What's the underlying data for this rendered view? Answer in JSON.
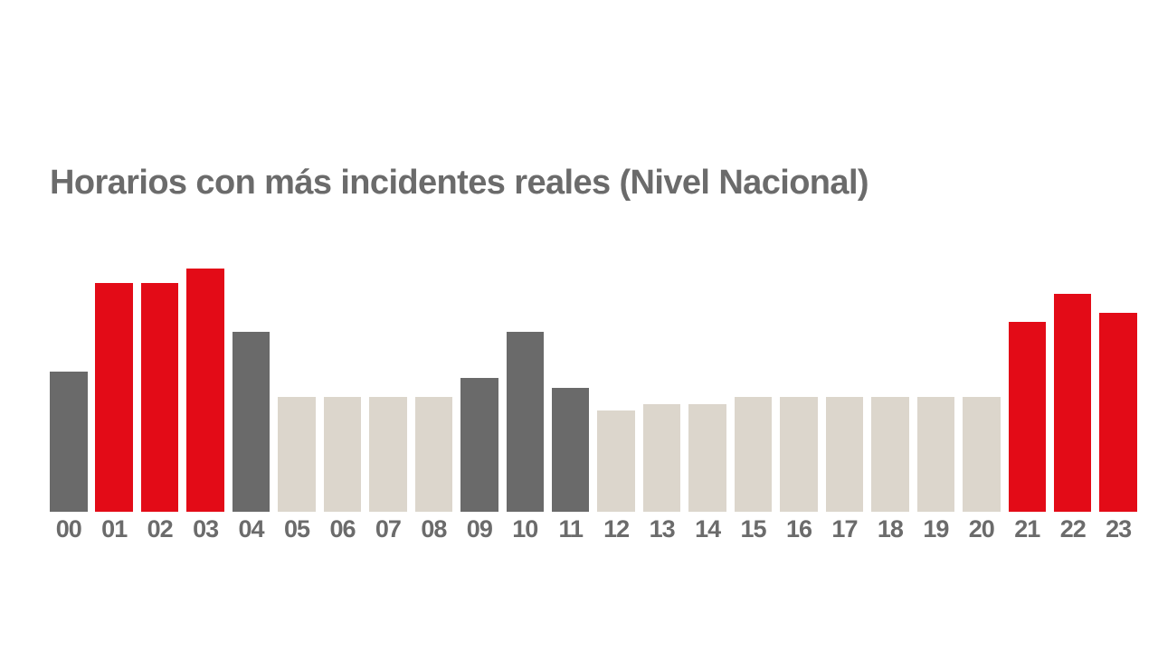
{
  "title": "Horarios con más incidentes reales (Nivel Nacional)",
  "colors": {
    "background": "#ffffff",
    "red": "#e30b17",
    "dark": "#6a6a6a",
    "light": "#dcd6cc",
    "text": "#6b6b6b"
  },
  "chart_data": {
    "type": "bar",
    "title": "Horarios con más incidentes reales (Nivel Nacional)",
    "categories": [
      "00",
      "01",
      "02",
      "03",
      "04",
      "05",
      "06",
      "07",
      "08",
      "09",
      "10",
      "11",
      "12",
      "13",
      "14",
      "15",
      "16",
      "17",
      "18",
      "19",
      "20",
      "21",
      "22",
      "23"
    ],
    "values": [
      57.8,
      94.0,
      94.0,
      100,
      73.9,
      47.4,
      47.4,
      47.4,
      47.4,
      55.2,
      73.9,
      51.1,
      41.8,
      44.4,
      44.4,
      47.4,
      47.4,
      47.4,
      47.4,
      47.4,
      47.4,
      78.2,
      89.6,
      81.7
    ],
    "units": "relative bar height (no y-axis shown), max bar = 100",
    "bar_color_roles": [
      "dark",
      "red",
      "red",
      "red",
      "dark",
      "light",
      "light",
      "light",
      "light",
      "dark",
      "dark",
      "dark",
      "light",
      "light",
      "light",
      "light",
      "light",
      "light",
      "light",
      "light",
      "light",
      "red",
      "red",
      "red"
    ],
    "xlabel": "",
    "ylabel": "",
    "ylim": [
      0,
      100
    ],
    "grid": false,
    "legend": false,
    "y_axis_shown": false
  }
}
